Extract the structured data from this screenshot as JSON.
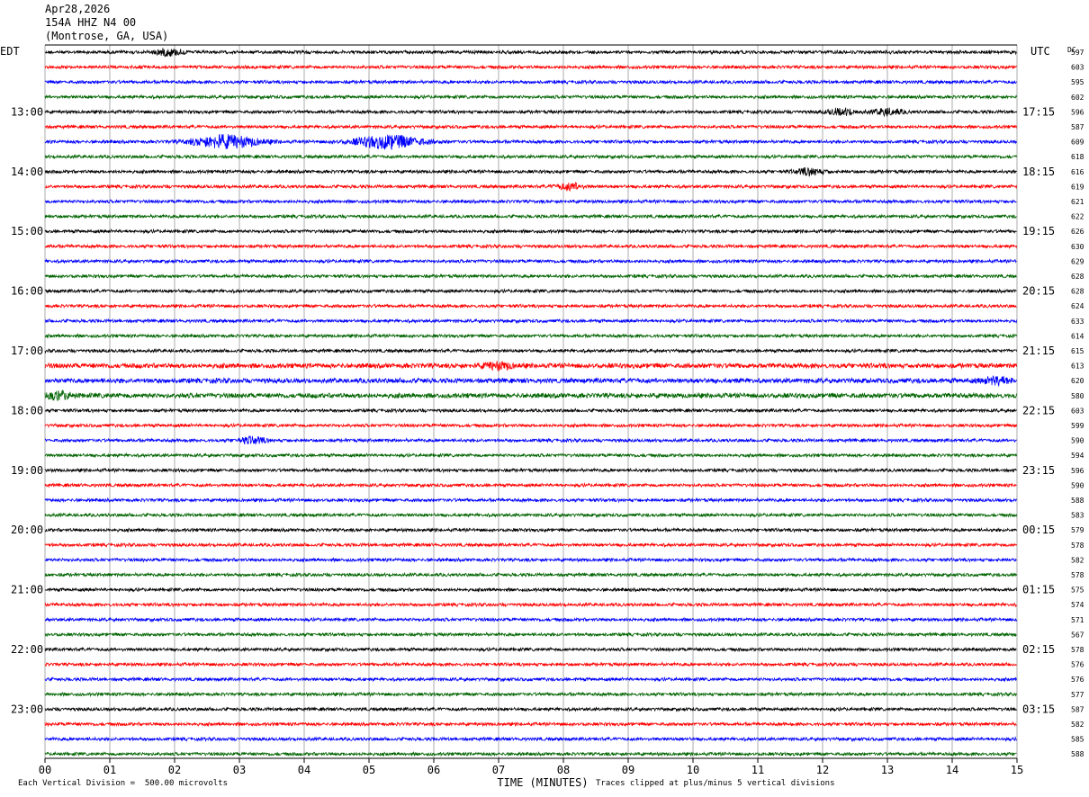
{
  "header": {
    "date": "Apr28,2026",
    "station": "154A HHZ N4 00",
    "location": "(Montrose, GA, USA)"
  },
  "labels": {
    "left_timezone": "EDT",
    "right_timezone": "UTC",
    "dc_label": "DC"
  },
  "footer": {
    "vertical_division": "Each Vertical Division =  500.00 microvolts",
    "clip_note": "Traces clipped at plus/minus 5 vertical divisions"
  },
  "chart_data": {
    "type": "line",
    "xlabel": "TIME (MINUTES)",
    "x_ticks": [
      "00",
      "01",
      "02",
      "03",
      "04",
      "05",
      "06",
      "07",
      "08",
      "09",
      "10",
      "11",
      "12",
      "13",
      "14",
      "15"
    ],
    "xlim": [
      0,
      15
    ],
    "row_count": 48,
    "trace_colors": [
      "#000000",
      "#ff0000",
      "#0000ff",
      "#006400"
    ],
    "left_hour_labels": [
      "13:00",
      "14:00",
      "15:00",
      "16:00",
      "17:00",
      "18:00",
      "19:00",
      "20:00",
      "21:00",
      "22:00",
      "23:00"
    ],
    "right_hour_labels": [
      "17:15",
      "18:15",
      "19:15",
      "20:15",
      "21:15",
      "22:15",
      "23:15",
      "00:15",
      "01:15",
      "02:15",
      "03:15"
    ],
    "dc_offsets": [
      597,
      603,
      595,
      602,
      596,
      587,
      609,
      618,
      616,
      619,
      621,
      622,
      626,
      630,
      629,
      628,
      628,
      624,
      633,
      614,
      615,
      613,
      620,
      580,
      603,
      599,
      590,
      594,
      596,
      590,
      588,
      583,
      579,
      578,
      582,
      578,
      575,
      574,
      571,
      567,
      578,
      576,
      576,
      577,
      587,
      582,
      585,
      588
    ],
    "events": [
      {
        "row": 0,
        "minute": 1.9,
        "amplitude": "small"
      },
      {
        "row": 4,
        "minute": 12.3,
        "amplitude": "small"
      },
      {
        "row": 4,
        "minute": 13.0,
        "amplitude": "small"
      },
      {
        "row": 6,
        "minute": 2.8,
        "amplitude": "large"
      },
      {
        "row": 6,
        "minute": 5.3,
        "amplitude": "large"
      },
      {
        "row": 8,
        "minute": 11.8,
        "amplitude": "small"
      },
      {
        "row": 9,
        "minute": 8.1,
        "amplitude": "small"
      },
      {
        "row": 21,
        "minute": 7.0,
        "amplitude": "small"
      },
      {
        "row": 22,
        "minute": 14.7,
        "amplitude": "small"
      },
      {
        "row": 23,
        "minute": 0.2,
        "amplitude": "small"
      },
      {
        "row": 26,
        "minute": 3.2,
        "amplitude": "small"
      }
    ]
  }
}
